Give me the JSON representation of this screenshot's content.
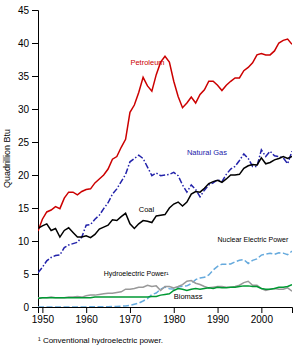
{
  "chart_data": {
    "type": "line",
    "ylabel": "Quadrillion Btu",
    "footnote": "¹ Conventional hydroelectric power.",
    "xlim": [
      1949,
      2007
    ],
    "ylim": [
      0,
      45
    ],
    "xticks": [
      1950,
      1960,
      1970,
      1980,
      1990,
      2000
    ],
    "yticks": [
      0,
      5,
      10,
      15,
      20,
      25,
      30,
      35,
      40,
      45
    ],
    "x": [
      1949,
      1950,
      1951,
      1952,
      1953,
      1954,
      1955,
      1956,
      1957,
      1958,
      1959,
      1960,
      1961,
      1962,
      1963,
      1964,
      1965,
      1966,
      1967,
      1968,
      1969,
      1970,
      1971,
      1972,
      1973,
      1974,
      1975,
      1976,
      1977,
      1978,
      1979,
      1980,
      1981,
      1982,
      1983,
      1984,
      1985,
      1986,
      1987,
      1988,
      1989,
      1990,
      1991,
      1992,
      1993,
      1994,
      1995,
      1996,
      1997,
      1998,
      1999,
      2000,
      2001,
      2002,
      2003,
      2004,
      2005,
      2006,
      2007
    ],
    "series": [
      {
        "name": "Petroleum",
        "color": "#cc0000",
        "line_style": "solid",
        "values": [
          11.5,
          13.3,
          14.4,
          14.7,
          15.2,
          14.9,
          16.5,
          17.4,
          17.4,
          17.0,
          17.5,
          17.8,
          17.9,
          18.8,
          19.4,
          20.0,
          20.9,
          22.4,
          22.8,
          24.2,
          25.4,
          29.5,
          30.6,
          32.5,
          34.8,
          33.5,
          32.7,
          35.2,
          37.1,
          38.0,
          37.1,
          34.2,
          31.9,
          30.2,
          30.9,
          31.8,
          30.9,
          32.2,
          32.9,
          34.2,
          34.2,
          33.6,
          32.8,
          33.6,
          34.2,
          34.7,
          34.7,
          35.8,
          36.3,
          37.0,
          38.2,
          38.4,
          38.2,
          38.2,
          38.8,
          40.0,
          40.4,
          40.6,
          39.8
        ]
      },
      {
        "name": "Natural Gas",
        "color": "#2222aa",
        "line_style": "dashdot",
        "values": [
          5.2,
          6.0,
          7.0,
          7.5,
          7.8,
          7.9,
          9.0,
          9.4,
          9.6,
          9.8,
          10.6,
          12.4,
          12.5,
          13.3,
          13.9,
          14.9,
          15.8,
          17.1,
          17.9,
          19.0,
          20.1,
          22.0,
          22.5,
          23.0,
          22.5,
          21.2,
          19.9,
          20.3,
          19.9,
          20.0,
          20.1,
          20.4,
          19.9,
          18.5,
          17.4,
          18.5,
          17.8,
          16.7,
          17.7,
          18.5,
          18.8,
          19.3,
          19.0,
          20.1,
          20.9,
          21.3,
          22.2,
          23.2,
          22.5,
          21.3,
          21.3,
          23.8,
          22.8,
          23.6,
          22.9,
          22.8,
          22.6,
          21.7,
          23.6
        ]
      },
      {
        "name": "Coal",
        "color": "#000000",
        "line_style": "solid",
        "values": [
          11.9,
          12.3,
          12.6,
          11.6,
          11.9,
          10.6,
          11.6,
          12.0,
          11.3,
          10.6,
          10.6,
          10.8,
          10.5,
          11.0,
          11.8,
          12.1,
          12.4,
          13.2,
          13.1,
          13.7,
          14.2,
          12.6,
          11.9,
          12.6,
          13.1,
          13.0,
          12.8,
          13.8,
          13.9,
          14.0,
          15.0,
          15.6,
          15.9,
          15.3,
          15.9,
          17.1,
          17.5,
          17.4,
          18.0,
          18.7,
          19.0,
          19.2,
          18.9,
          19.4,
          20.0,
          20.0,
          20.1,
          21.0,
          21.4,
          21.6,
          21.5,
          22.6,
          21.7,
          21.9,
          22.3,
          22.5,
          22.8,
          22.5,
          22.8
        ]
      },
      {
        "name": "Nuclear Electric Power",
        "color": "#66aadd",
        "line_style": "dashed",
        "values": [
          0.0,
          0.0,
          0.0,
          0.0,
          0.0,
          0.0,
          0.0,
          0.0,
          0.0,
          0.0,
          0.0,
          0.01,
          0.02,
          0.03,
          0.04,
          0.04,
          0.04,
          0.08,
          0.09,
          0.14,
          0.15,
          0.24,
          0.41,
          0.58,
          0.91,
          1.27,
          1.9,
          2.11,
          2.7,
          3.02,
          2.78,
          2.74,
          3.01,
          3.13,
          3.2,
          3.55,
          4.15,
          4.38,
          4.5,
          4.86,
          5.6,
          6.16,
          6.49,
          6.48,
          6.52,
          6.84,
          7.08,
          7.17,
          6.6,
          7.07,
          7.28,
          7.86,
          8.03,
          8.14,
          7.97,
          8.22,
          8.16,
          7.93,
          8.46
        ]
      },
      {
        "name": "Hydroelectric Power¹",
        "color": "#999999",
        "line_style": "solid",
        "values": [
          1.4,
          1.4,
          1.4,
          1.5,
          1.4,
          1.4,
          1.4,
          1.5,
          1.5,
          1.6,
          1.5,
          1.7,
          1.8,
          1.8,
          1.9,
          2.0,
          2.1,
          2.1,
          2.2,
          2.3,
          2.7,
          2.7,
          2.8,
          3.0,
          3.0,
          3.3,
          3.1,
          3.2,
          2.5,
          3.1,
          3.1,
          2.9,
          3.1,
          3.4,
          3.9,
          4.0,
          3.6,
          3.4,
          3.1,
          2.9,
          3.0,
          3.1,
          3.1,
          3.0,
          3.0,
          3.1,
          3.3,
          3.7,
          3.9,
          3.3,
          3.3,
          2.8,
          2.5,
          2.7,
          2.8,
          2.7,
          2.7,
          2.9,
          2.4
        ]
      },
      {
        "name": "Biomass",
        "color": "#009933",
        "line_style": "solid",
        "values": [
          1.3,
          1.4,
          1.4,
          1.4,
          1.4,
          1.4,
          1.4,
          1.4,
          1.4,
          1.4,
          1.4,
          1.4,
          1.4,
          1.5,
          1.5,
          1.5,
          1.5,
          1.5,
          1.5,
          1.5,
          1.5,
          1.5,
          1.5,
          1.5,
          1.5,
          1.5,
          1.6,
          1.6,
          1.8,
          1.9,
          2.0,
          2.5,
          2.8,
          2.7,
          2.5,
          2.7,
          2.8,
          2.7,
          2.8,
          2.9,
          2.8,
          3.0,
          2.9,
          2.9,
          3.0,
          3.0,
          3.1,
          3.2,
          3.2,
          3.1,
          3.1,
          2.8,
          2.7,
          2.7,
          2.8,
          3.0,
          3.0,
          3.1,
          3.4
        ]
      }
    ],
    "annotations": [
      {
        "text": "Petroleum",
        "x": 1974,
        "y": 36.5,
        "color": "#cc0000"
      },
      {
        "text": "Natural Gas",
        "x": 1983,
        "y": 22.8,
        "color": "#2222aa"
      },
      {
        "text": "Coal",
        "x": 1972,
        "y": 14.2,
        "color": "#000000"
      },
      {
        "text": "Nuclear Electric Power",
        "x": 1990,
        "y": 9.6,
        "color": "#000000"
      },
      {
        "text": "Hydroelectric Power¹",
        "x": 1964,
        "y": 4.5,
        "color": "#000000"
      },
      {
        "text": "Biomass",
        "x": 1980,
        "y": 1.0,
        "color": "#000000"
      }
    ]
  }
}
